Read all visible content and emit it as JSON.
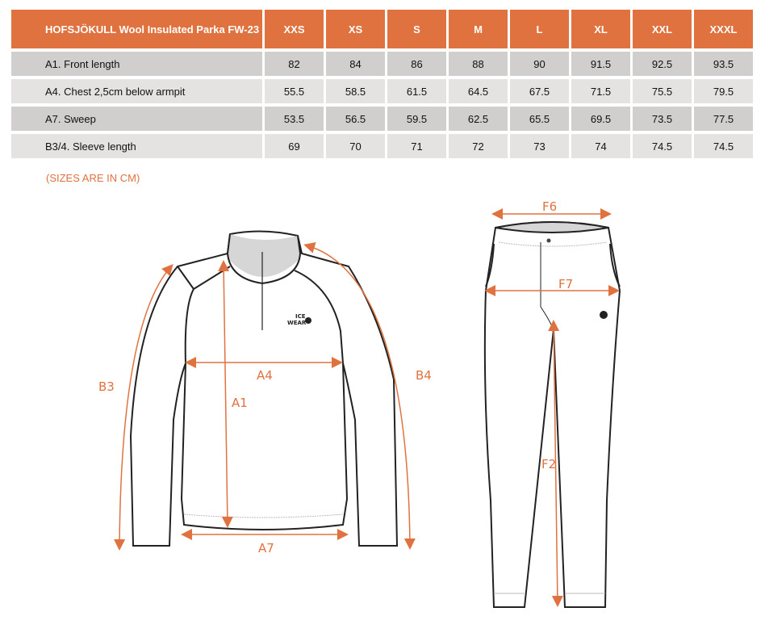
{
  "table": {
    "product": "HOFSJÖKULL Wool Insulated Parka FW-23",
    "sizes": [
      "XXS",
      "XS",
      "S",
      "M",
      "L",
      "XL",
      "XXL",
      "XXXL"
    ],
    "rows": [
      {
        "label": "A1. Front length",
        "values": [
          "82",
          "84",
          "86",
          "88",
          "90",
          "91.5",
          "92.5",
          "93.5"
        ]
      },
      {
        "label": "A4. Chest 2,5cm below armpit",
        "values": [
          "55.5",
          "58.5",
          "61.5",
          "64.5",
          "67.5",
          "71.5",
          "75.5",
          "79.5"
        ]
      },
      {
        "label": "A7. Sweep",
        "values": [
          "53.5",
          "56.5",
          "59.5",
          "62.5",
          "65.5",
          "69.5",
          "73.5",
          "77.5"
        ]
      },
      {
        "label": "B3/4. Sleeve length",
        "values": [
          "69",
          "70",
          "71",
          "72",
          "73",
          "74",
          "74.5",
          "74.5"
        ]
      }
    ]
  },
  "note": "(SIZES ARE IN CM)",
  "diagram": {
    "labels": {
      "A1": "A1",
      "A4": "A4",
      "A7": "A7",
      "B3": "B3",
      "B4": "B4",
      "F2": "F2",
      "F6": "F6",
      "F7": "F7"
    },
    "logo": "ICE WEAR",
    "accent": "#e07240"
  }
}
